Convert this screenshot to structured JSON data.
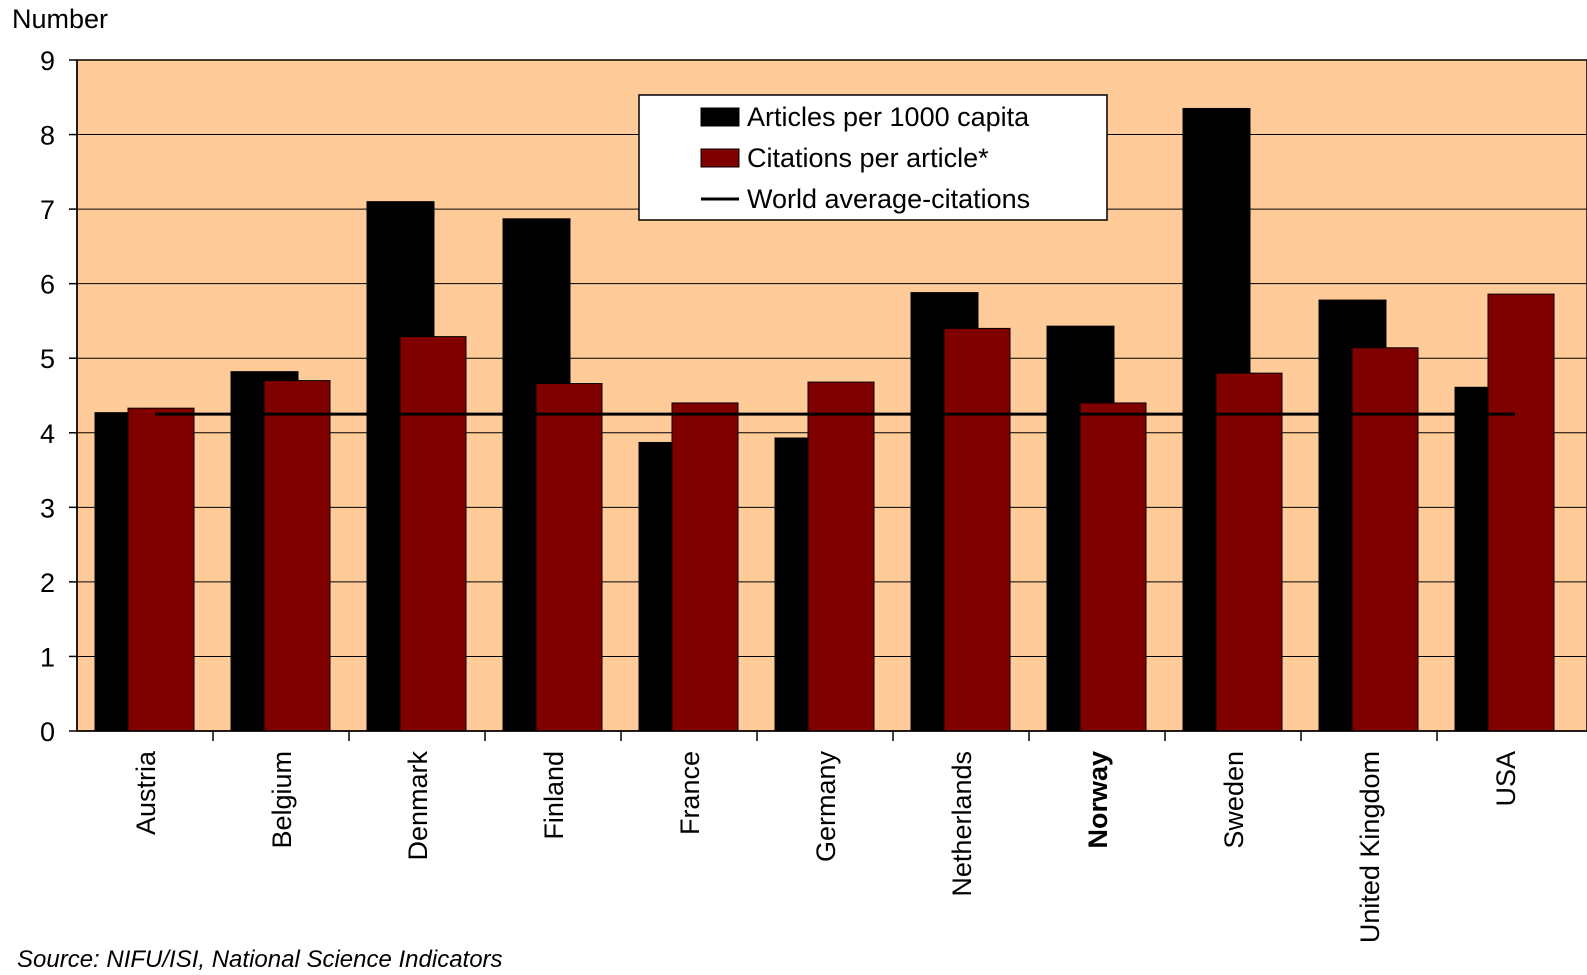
{
  "chart_data": {
    "type": "bar",
    "ylabel": "Number",
    "ylim": [
      0,
      9
    ],
    "yticks": [
      0,
      1,
      2,
      3,
      4,
      5,
      6,
      7,
      8,
      9
    ],
    "grid": "horizontal",
    "legend_position": "top-center",
    "categories": [
      "Austria",
      "Belgium",
      "Denmark",
      "Finland",
      "France",
      "Germany",
      "Netherlands",
      "Norway",
      "Sweden",
      "United Kingdom",
      "USA"
    ],
    "highlighted_category": "Norway",
    "series": [
      {
        "name": "Articles per 1000 capita",
        "color": "#000000",
        "values": [
          4.27,
          4.82,
          7.1,
          6.87,
          3.87,
          3.93,
          5.88,
          5.43,
          8.35,
          5.78,
          4.61
        ]
      },
      {
        "name": "Citations per article*",
        "color": "#800000",
        "values": [
          4.33,
          4.7,
          5.29,
          4.66,
          4.4,
          4.68,
          5.4,
          4.4,
          4.8,
          5.14,
          5.86
        ]
      }
    ],
    "reference_line": {
      "name": "World average-citations",
      "value": 4.25,
      "color": "#000000"
    },
    "plot_background": "#ffcc99"
  },
  "source": "Source: NIFU/ISI, National Science Indicators"
}
